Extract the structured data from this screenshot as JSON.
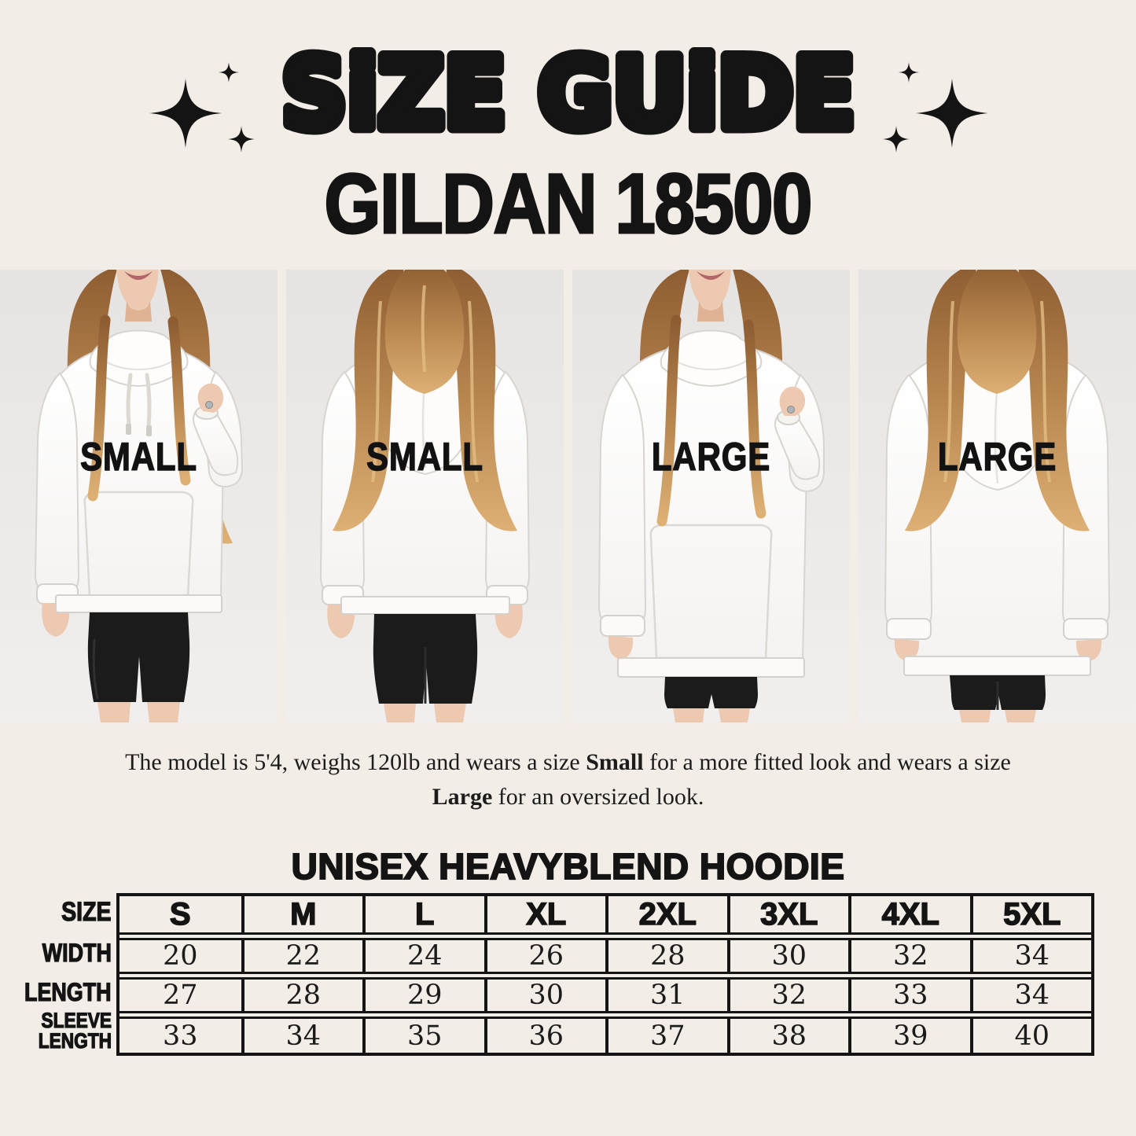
{
  "header": {
    "title": "SiZE GUiDE",
    "subtitle": "GILDAN 18500"
  },
  "icons": {
    "decoration": "four-point-sparkle-cluster"
  },
  "photos": [
    {
      "label": "SMALL",
      "view": "front",
      "fit": "small"
    },
    {
      "label": "SMALL",
      "view": "back",
      "fit": "small"
    },
    {
      "label": "LARGE",
      "view": "front",
      "fit": "large"
    },
    {
      "label": "LARGE",
      "view": "back",
      "fit": "large"
    }
  ],
  "model_note": {
    "segments": [
      {
        "text": "The model is 5'4, weighs 120lb and wears a size ",
        "bold": false
      },
      {
        "text": "Small",
        "bold": true
      },
      {
        "text": " for a more fitted look and wears a size ",
        "bold": false
      },
      {
        "text": "Large",
        "bold": true
      },
      {
        "text": " for an oversized look.",
        "bold": false
      }
    ]
  },
  "size_chart": {
    "title": "UNISEX HEAVYBLEND HOODIE",
    "corner_label": "SIZE",
    "sizes": [
      "S",
      "M",
      "L",
      "XL",
      "2XL",
      "3XL",
      "4XL",
      "5XL"
    ],
    "rows": [
      {
        "label": "WIDTH",
        "values": [
          "20",
          "22",
          "24",
          "26",
          "28",
          "30",
          "32",
          "34"
        ]
      },
      {
        "label": "LENGTH",
        "values": [
          "27",
          "28",
          "29",
          "30",
          "31",
          "32",
          "33",
          "34"
        ]
      },
      {
        "label": "SLEEVE LENGTH",
        "values": [
          "33",
          "34",
          "35",
          "36",
          "37",
          "38",
          "39",
          "40"
        ]
      }
    ]
  },
  "colors": {
    "background": "#f2ede6",
    "ink": "#141414",
    "photo_background": "#eae8e6",
    "hoodie": "#fdfdfd",
    "shorts": "#1b1b1b",
    "skin": "#ecc9b0",
    "hair": "#b3824c"
  }
}
